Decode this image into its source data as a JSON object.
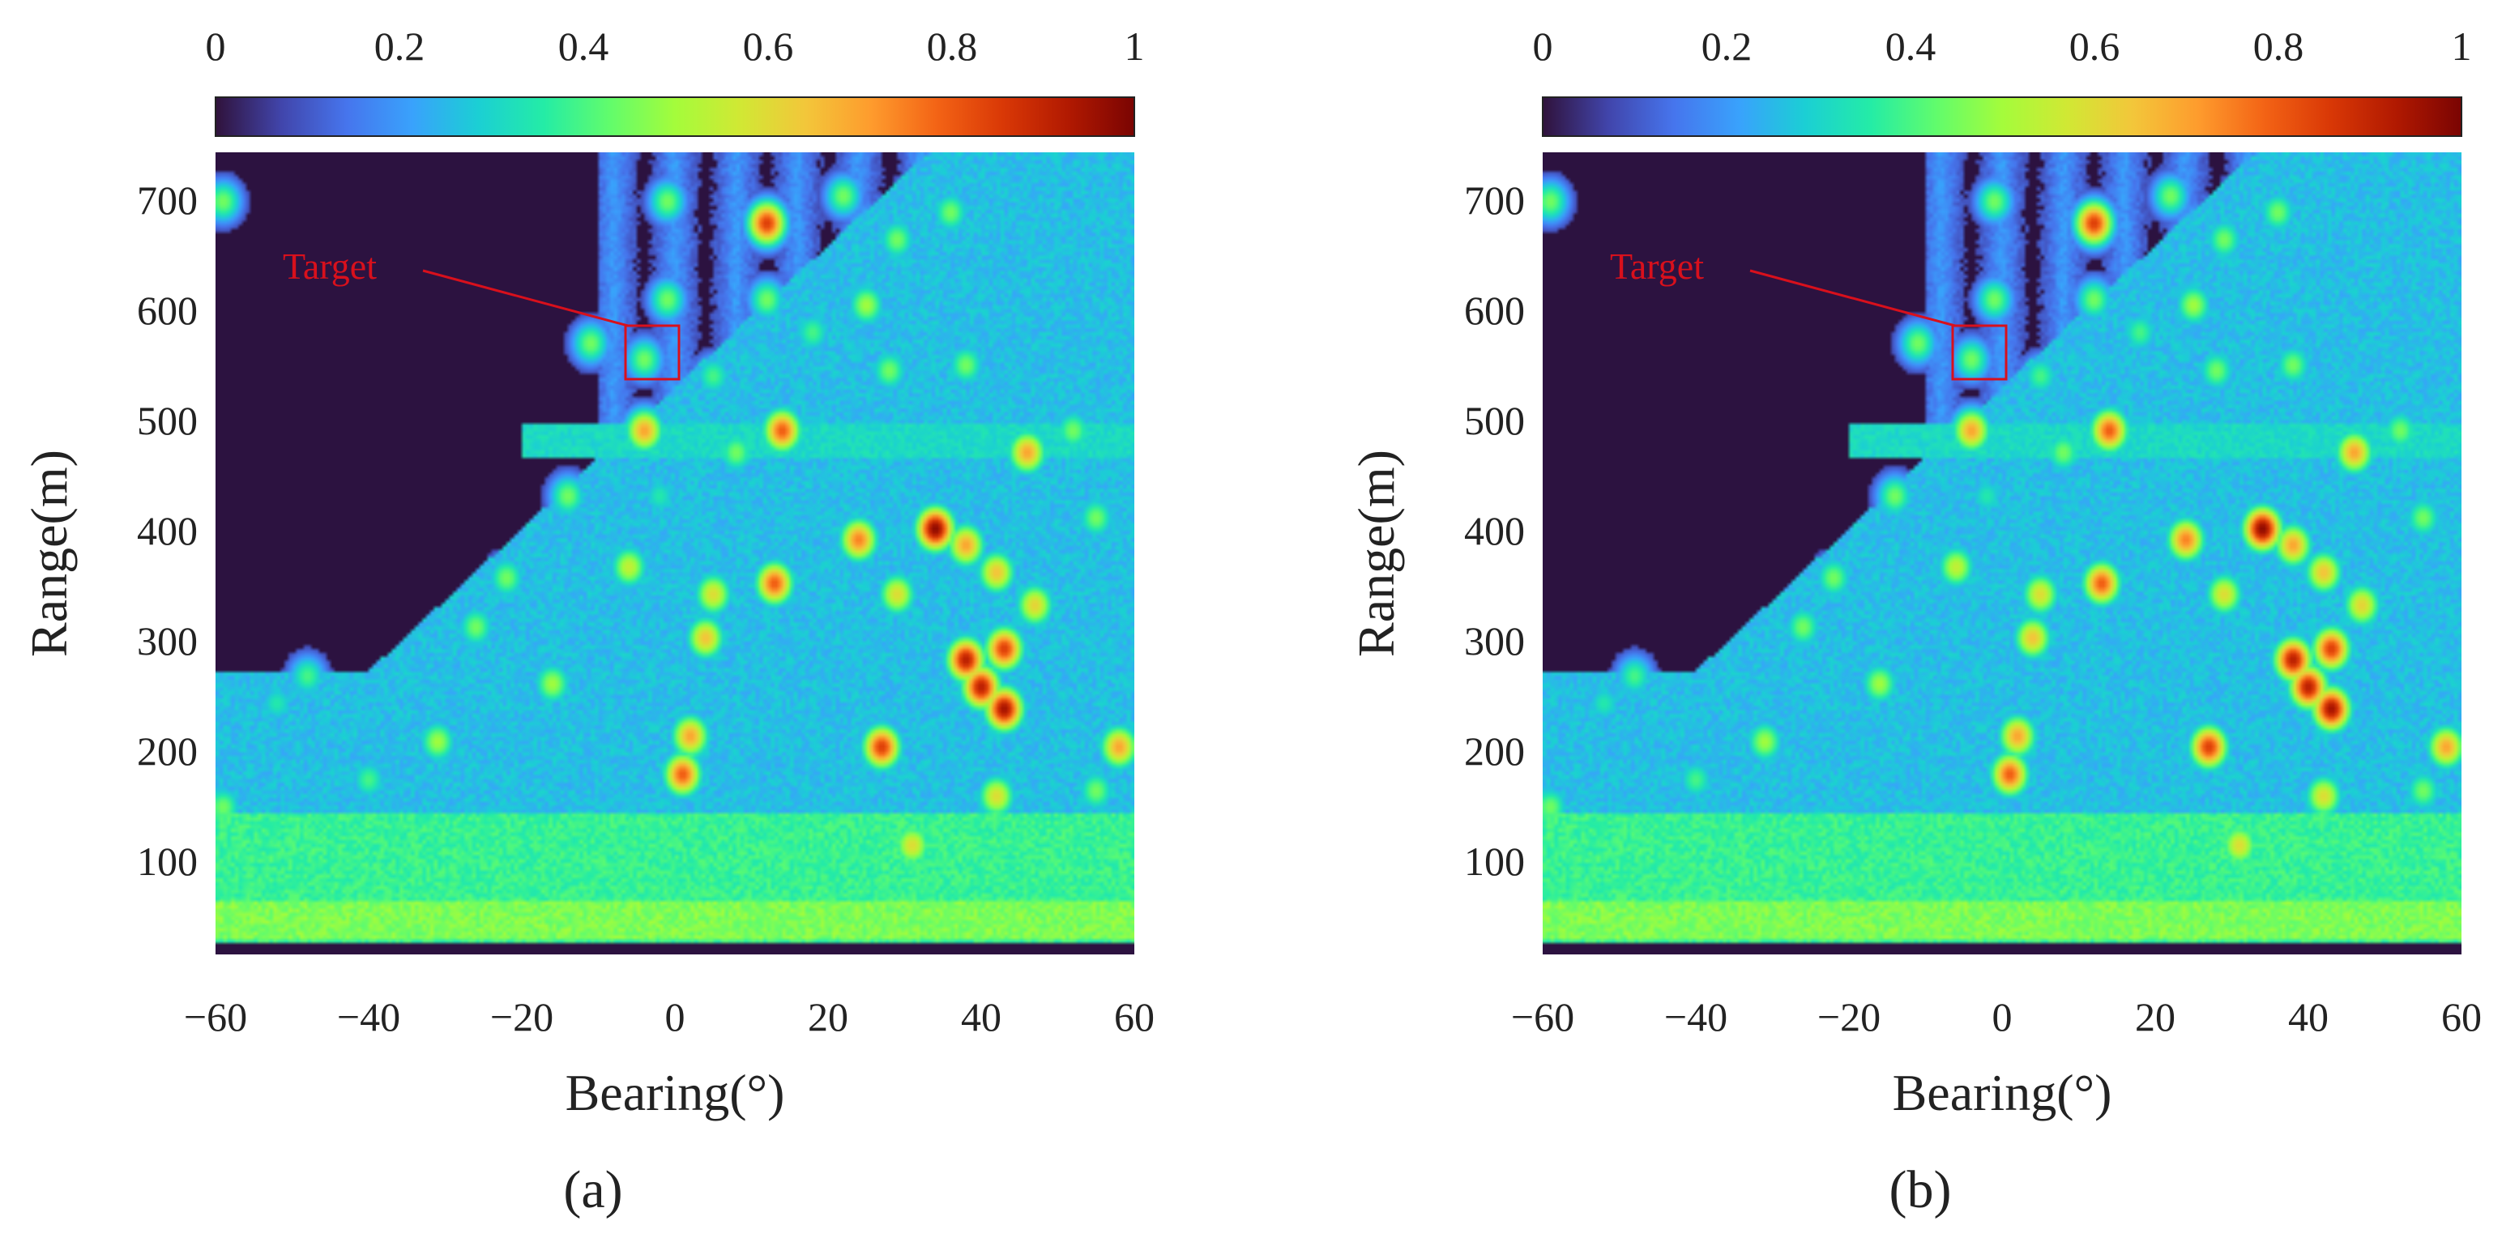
{
  "colors": {
    "background": "#2c1240",
    "target": "#d8101c",
    "colormap": [
      "#30123b",
      "#4145ab",
      "#4675ed",
      "#39a2fc",
      "#1bcfd4",
      "#24eca6",
      "#61fc6c",
      "#a4fc3b",
      "#d1e834",
      "#f3c63a",
      "#fe9b2d",
      "#f36315",
      "#d93806",
      "#b11901",
      "#7a0402"
    ]
  },
  "chart_data": [
    {
      "type": "heatmap",
      "panel_label": "(a)",
      "xlabel": "Bearing(°)",
      "ylabel": "Range(m)",
      "xlim": [
        -60,
        60
      ],
      "ylim": [
        10,
        745
      ],
      "xticks": [
        "−60",
        "−40",
        "−20",
        "0",
        "20",
        "40",
        "60"
      ],
      "yticks": [
        "100",
        "200",
        "300",
        "400",
        "500",
        "600",
        "700"
      ],
      "colorbar": {
        "min": 0,
        "max": 1,
        "ticks": [
          "0",
          "0.2",
          "0.4",
          "0.6",
          "0.8",
          "1"
        ],
        "position": "top"
      },
      "annotation": {
        "text": "Target",
        "box_x": [
          -7,
          0
        ],
        "box_y": [
          535,
          585
        ]
      }
    },
    {
      "type": "heatmap",
      "panel_label": "(b)",
      "xlabel": "Bearing(°)",
      "ylabel": "Range(m)",
      "xlim": [
        -60,
        60
      ],
      "ylim": [
        10,
        745
      ],
      "xticks": [
        "−60",
        "−40",
        "−20",
        "0",
        "20",
        "40",
        "60"
      ],
      "yticks": [
        "100",
        "200",
        "300",
        "400",
        "500",
        "600",
        "700"
      ],
      "colorbar": {
        "min": 0,
        "max": 1,
        "ticks": [
          "0",
          "0.2",
          "0.4",
          "0.6",
          "0.8",
          "1"
        ],
        "position": "top"
      },
      "annotation": {
        "text": "Target",
        "box_x": [
          -7,
          0
        ],
        "box_y": [
          535,
          585
        ]
      }
    }
  ],
  "scene": {
    "blobs": [
      {
        "x": -59,
        "y": 700,
        "v": 0.45
      },
      {
        "x": -59,
        "y": 145,
        "v": 0.45
      },
      {
        "x": -40,
        "y": 170,
        "v": 0.4
      },
      {
        "x": -31,
        "y": 205,
        "v": 0.5
      },
      {
        "x": -16,
        "y": 258,
        "v": 0.5
      },
      {
        "x": -6,
        "y": 365,
        "v": 0.55
      },
      {
        "x": -4,
        "y": 490,
        "v": 0.7
      },
      {
        "x": -4,
        "y": 555,
        "v": 0.45
      },
      {
        "x": -11,
        "y": 570,
        "v": 0.45
      },
      {
        "x": -1,
        "y": 610,
        "v": 0.45
      },
      {
        "x": -1,
        "y": 700,
        "v": 0.45
      },
      {
        "x": 1,
        "y": 175,
        "v": 0.8
      },
      {
        "x": 2,
        "y": 210,
        "v": 0.7
      },
      {
        "x": 4,
        "y": 300,
        "v": 0.65
      },
      {
        "x": 5,
        "y": 340,
        "v": 0.6
      },
      {
        "x": 5,
        "y": 540,
        "v": 0.4
      },
      {
        "x": 12,
        "y": 680,
        "v": 0.85
      },
      {
        "x": 12,
        "y": 610,
        "v": 0.45
      },
      {
        "x": 13,
        "y": 350,
        "v": 0.8
      },
      {
        "x": 14,
        "y": 490,
        "v": 0.8
      },
      {
        "x": 22,
        "y": 705,
        "v": 0.45
      },
      {
        "x": 24,
        "y": 390,
        "v": 0.75
      },
      {
        "x": 25,
        "y": 605,
        "v": 0.5
      },
      {
        "x": 27,
        "y": 200,
        "v": 0.85
      },
      {
        "x": 28,
        "y": 545,
        "v": 0.45
      },
      {
        "x": 29,
        "y": 665,
        "v": 0.45
      },
      {
        "x": 29,
        "y": 340,
        "v": 0.6
      },
      {
        "x": 31,
        "y": 110,
        "v": 0.6
      },
      {
        "x": 34,
        "y": 400,
        "v": 0.98
      },
      {
        "x": 38,
        "y": 280,
        "v": 0.92
      },
      {
        "x": 40,
        "y": 255,
        "v": 0.92
      },
      {
        "x": 43,
        "y": 235,
        "v": 0.95
      },
      {
        "x": 42,
        "y": 155,
        "v": 0.6
      },
      {
        "x": 43,
        "y": 290,
        "v": 0.85
      },
      {
        "x": 46,
        "y": 470,
        "v": 0.7
      },
      {
        "x": 38,
        "y": 385,
        "v": 0.7
      },
      {
        "x": 42,
        "y": 360,
        "v": 0.65
      },
      {
        "x": 47,
        "y": 330,
        "v": 0.62
      },
      {
        "x": 38,
        "y": 550,
        "v": 0.45
      },
      {
        "x": 55,
        "y": 410,
        "v": 0.45
      },
      {
        "x": 58,
        "y": 200,
        "v": 0.7
      },
      {
        "x": 55,
        "y": 160,
        "v": 0.45
      },
      {
        "x": 36,
        "y": 690,
        "v": 0.45
      },
      {
        "x": 18,
        "y": 580,
        "v": 0.4
      },
      {
        "x": 8,
        "y": 470,
        "v": 0.45
      },
      {
        "x": -2,
        "y": 430,
        "v": 0.35
      },
      {
        "x": -26,
        "y": 310,
        "v": 0.45
      },
      {
        "x": -22,
        "y": 355,
        "v": 0.45
      },
      {
        "x": -14,
        "y": 430,
        "v": 0.45
      },
      {
        "x": -48,
        "y": 265,
        "v": 0.4
      },
      {
        "x": -52,
        "y": 240,
        "v": 0.35
      },
      {
        "x": 52,
        "y": 490,
        "v": 0.45
      }
    ]
  }
}
